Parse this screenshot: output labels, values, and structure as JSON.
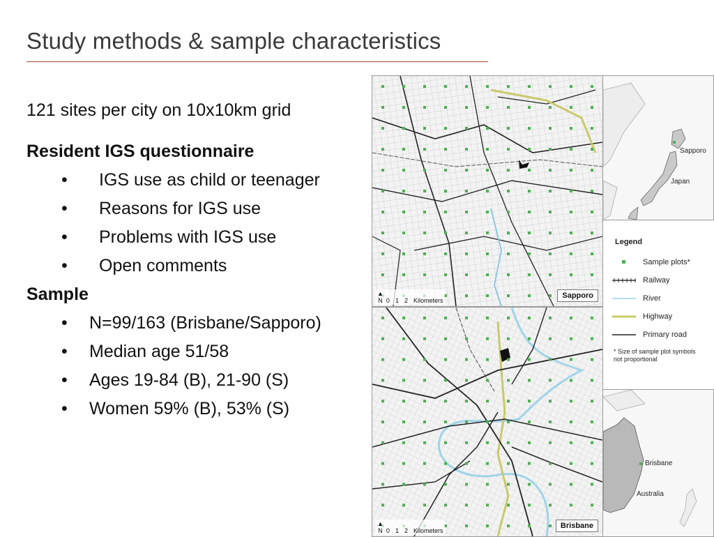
{
  "slide": {
    "title": "Study methods & sample characteristics",
    "intro": "121 sites per city on 10x10km grid",
    "questionnaire_heading": "Resident IGS questionnaire",
    "questionnaire_items": [
      "IGS use as child or teenager",
      "Reasons for IGS use",
      "Problems with IGS use",
      "Open comments"
    ],
    "sample_heading": "Sample",
    "sample_items": [
      "N=99/163 (Brisbane/Sapporo)",
      "Median age 51/58",
      "Ages 19-84 (B), 21-90 (S)",
      "Women 59% (B), 53% (S)"
    ],
    "bullet_char": "•"
  },
  "figure": {
    "sapporo_label": "Sapporo",
    "brisbane_label": "Brisbane",
    "north_label": "N",
    "scale_ticks": [
      "0",
      "1",
      "2"
    ],
    "scale_unit": "Kilometers",
    "japan_inset": {
      "city": "Sapporo",
      "country": "Japan"
    },
    "australia_inset": {
      "city": "Brisbane",
      "country": "Australia"
    },
    "legend": {
      "title": "Legend",
      "items": [
        {
          "label": "Sample plots*",
          "symbol": "square-icon",
          "color": "#4caf50"
        },
        {
          "label": "Railway",
          "symbol": "railway-line-icon",
          "color": "#333333"
        },
        {
          "label": "River",
          "symbol": "river-line-icon",
          "color": "#9fd4e8"
        },
        {
          "label": "Highway",
          "symbol": "highway-line-icon",
          "color": "#c9c96a"
        },
        {
          "label": "Primary road",
          "symbol": "road-line-icon",
          "color": "#222222"
        }
      ],
      "note": "* Size of sample plot symbols not proportional"
    }
  },
  "colors": {
    "accent_rule": "#a3443a",
    "plot_dot": "#4caf50"
  }
}
